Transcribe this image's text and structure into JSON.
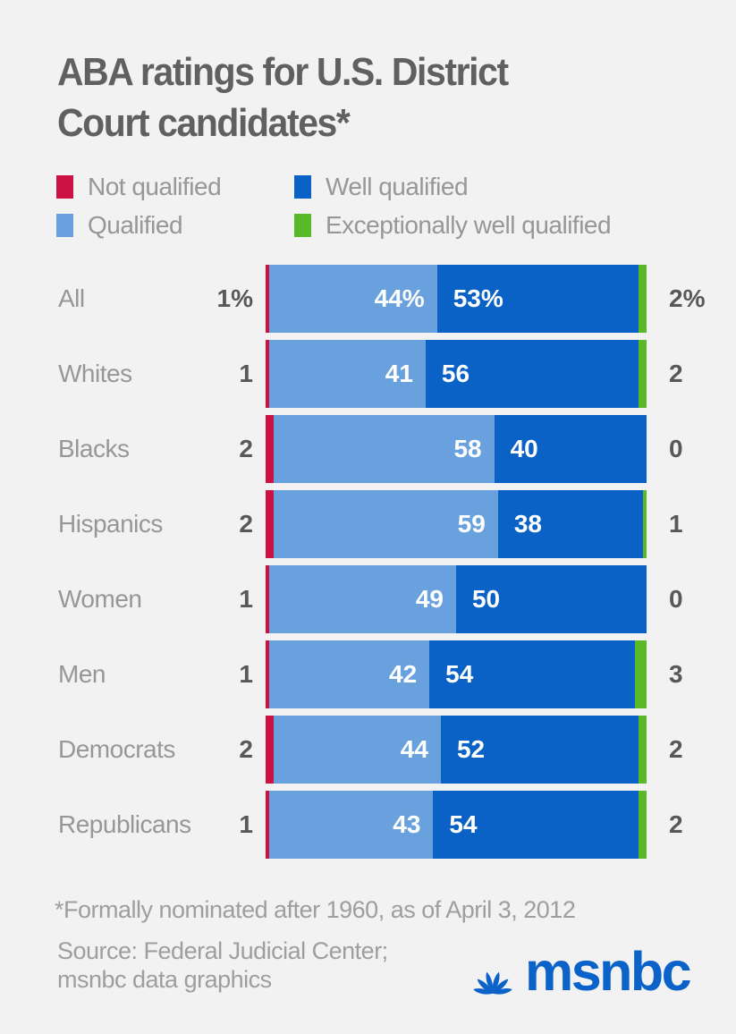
{
  "title": {
    "text": "ABA ratings for U.S. District\nCourt candidates*"
  },
  "legend": {
    "items": [
      {
        "label": "Not qualified",
        "color": "#cd1142"
      },
      {
        "label": "Well qualified",
        "color": "#0a62c6"
      },
      {
        "label": "Qualified",
        "color": "#68a1de"
      },
      {
        "label": "Exceptionally well qualified",
        "color": "#5ab927"
      }
    ]
  },
  "chart_data": {
    "type": "bar",
    "orientation": "horizontal-stacked",
    "categories": [
      "All",
      "Whites",
      "Blacks",
      "Hispanics",
      "Women",
      "Men",
      "Democrats",
      "Republicans"
    ],
    "series": [
      {
        "name": "Not qualified",
        "color": "#cd1142",
        "values": [
          1,
          1,
          2,
          2,
          1,
          1,
          2,
          1
        ]
      },
      {
        "name": "Qualified",
        "color": "#68a1de",
        "values": [
          44,
          41,
          58,
          59,
          49,
          42,
          44,
          43
        ]
      },
      {
        "name": "Well qualified",
        "color": "#0a62c6",
        "values": [
          53,
          56,
          40,
          38,
          50,
          54,
          52,
          54
        ]
      },
      {
        "name": "Exceptionally well qualified",
        "color": "#5ab927",
        "values": [
          2,
          2,
          0,
          1,
          0,
          3,
          2,
          2
        ]
      }
    ],
    "xlim": [
      0,
      100
    ],
    "value_unit": "percent",
    "legend_position": "top",
    "grid": false
  },
  "rows": [
    {
      "category": "All",
      "not_qualified": "1%",
      "qualified": "44%",
      "well_qualified": "53%",
      "exceptionally_well_qualified": "2%"
    },
    {
      "category": "Whites",
      "not_qualified": "1",
      "qualified": "41",
      "well_qualified": "56",
      "exceptionally_well_qualified": "2"
    },
    {
      "category": "Blacks",
      "not_qualified": "2",
      "qualified": "58",
      "well_qualified": "40",
      "exceptionally_well_qualified": "0"
    },
    {
      "category": "Hispanics",
      "not_qualified": "2",
      "qualified": "59",
      "well_qualified": "38",
      "exceptionally_well_qualified": "1"
    },
    {
      "category": "Women",
      "not_qualified": "1",
      "qualified": "49",
      "well_qualified": "50",
      "exceptionally_well_qualified": "0"
    },
    {
      "category": "Men",
      "not_qualified": "1",
      "qualified": "42",
      "well_qualified": "54",
      "exceptionally_well_qualified": "3"
    },
    {
      "category": "Democrats",
      "not_qualified": "2",
      "qualified": "44",
      "well_qualified": "52",
      "exceptionally_well_qualified": "2"
    },
    {
      "category": "Republicans",
      "not_qualified": "1",
      "qualified": "43",
      "well_qualified": "54",
      "exceptionally_well_qualified": "2"
    }
  ],
  "footnote": "*Formally nominated after 1960, as of April 3, 2012",
  "source": {
    "text": "Source: Federal Judicial Center;\nmsnbc data graphics"
  },
  "logo": {
    "text": "msnbc",
    "color": "#0b63c9"
  }
}
